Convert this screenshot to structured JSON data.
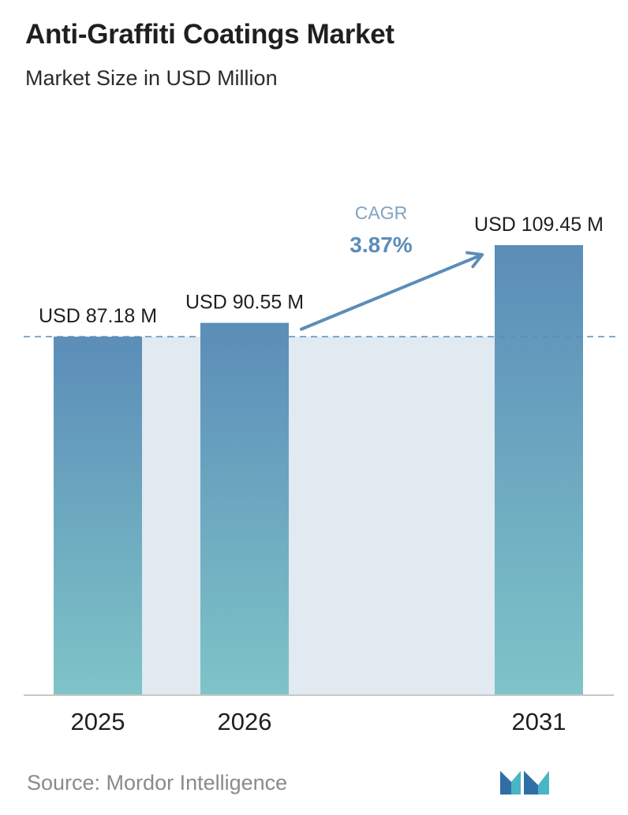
{
  "header": {
    "title": "Anti-Graffiti Coatings Market",
    "subtitle": "Market Size in USD Million"
  },
  "chart_data": {
    "type": "bar",
    "title": "Anti-Graffiti Coatings Market",
    "subtitle": "Market Size in USD Million",
    "categories": [
      "2025",
      "2026",
      "2031"
    ],
    "values": [
      87.18,
      90.55,
      109.45
    ],
    "value_labels": [
      "USD 87.18 M",
      "USD 90.55 M",
      "USD 109.45 M"
    ],
    "unit": "USD Million",
    "ylim": [
      0,
      109.45
    ],
    "grid": false,
    "annotation": {
      "label": "CAGR",
      "value": "3.87%",
      "from_category": "2026",
      "to_category": "2031"
    },
    "colors": {
      "bar_top": "#5b8db8",
      "bar_bottom": "#7ec4c8",
      "band": "#e1e9f1",
      "arrow": "#5b8db8",
      "cagr_label": "#7fa4c4",
      "cagr_value": "#5b8db8",
      "axis": "#c8c8c8"
    }
  },
  "footer": {
    "source": "Source:  Mordor Intelligence",
    "logo_icon": "mordor-intelligence-logo-icon"
  }
}
